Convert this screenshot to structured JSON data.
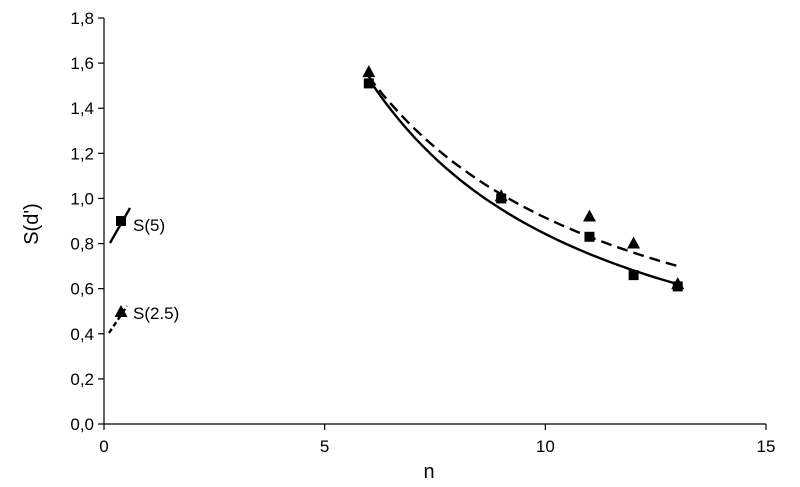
{
  "chart_data": {
    "type": "scatter",
    "xlabel": "n",
    "ylabel": "S(d')",
    "xlim": [
      0,
      15
    ],
    "ylim": [
      0,
      1.8
    ],
    "x_ticks": [
      0,
      5,
      10,
      15
    ],
    "x_tick_labels": [
      "0",
      "5",
      "10",
      "15"
    ],
    "y_ticks": [
      0,
      0.2,
      0.4,
      0.6,
      0.8,
      1.0,
      1.2,
      1.4,
      1.6,
      1.8
    ],
    "y_tick_labels": [
      "0,0",
      "0,2",
      "0,4",
      "0,6",
      "0,8",
      "1,0",
      "1,2",
      "1,4",
      "1,6",
      "1,8"
    ],
    "grid": false,
    "legend_position": "left",
    "series": [
      {
        "name": "S(5)",
        "marker": "square",
        "line_style": "solid",
        "points": [
          {
            "x": 6,
            "y": 1.51
          },
          {
            "x": 9,
            "y": 1.0
          },
          {
            "x": 11,
            "y": 0.83
          },
          {
            "x": 12,
            "y": 0.66
          },
          {
            "x": 13,
            "y": 0.61
          }
        ],
        "trend": {
          "x_from": 6,
          "x_to": 13,
          "y_from": 1.53,
          "y_to": 0.62
        }
      },
      {
        "name": "S(2.5)",
        "marker": "triangle",
        "line_style": "dashed",
        "points": [
          {
            "x": 6,
            "y": 1.56
          },
          {
            "x": 9,
            "y": 1.01
          },
          {
            "x": 11,
            "y": 0.92
          },
          {
            "x": 12,
            "y": 0.8
          },
          {
            "x": 13,
            "y": 0.62
          }
        ],
        "trend": {
          "x_from": 6,
          "x_to": 13,
          "y_from": 1.54,
          "y_to": 0.7
        }
      }
    ]
  }
}
